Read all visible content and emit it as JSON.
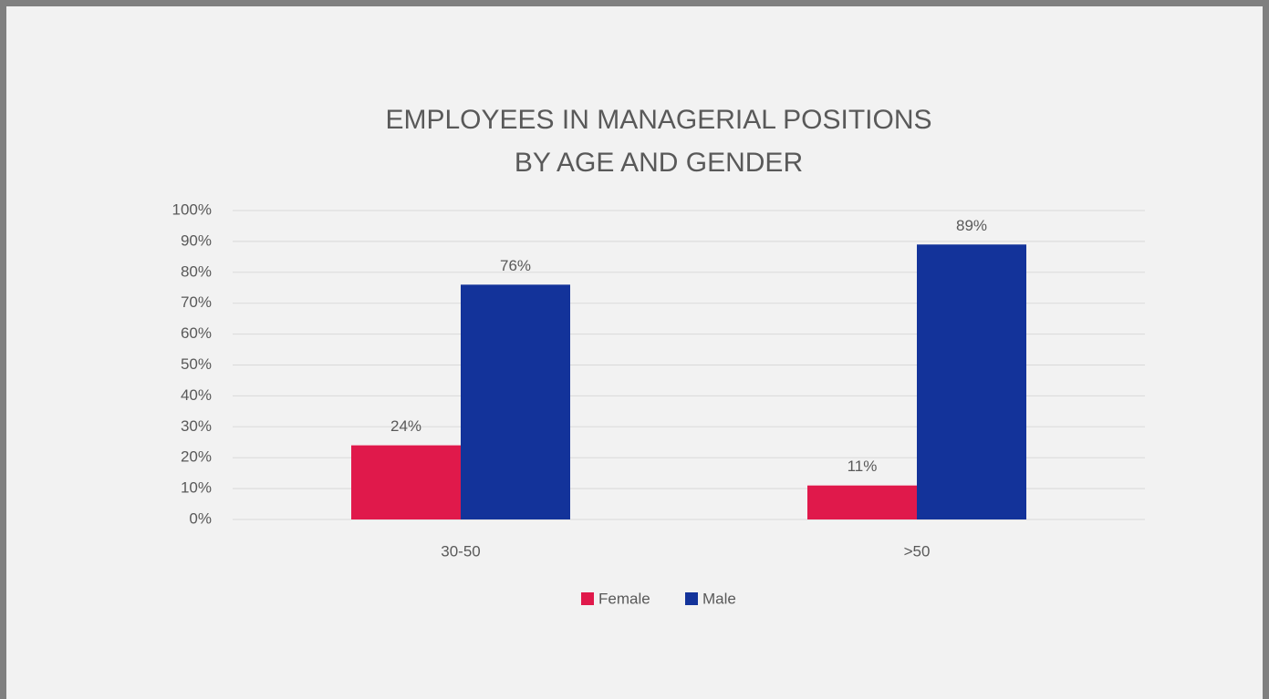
{
  "chart_data": {
    "type": "bar",
    "title": [
      "EMPLOYEES IN MANAGERIAL POSITIONS",
      "BY AGE AND GENDER"
    ],
    "categories": [
      "30-50",
      ">50"
    ],
    "series": [
      {
        "name": "Female",
        "color": "#e0194b",
        "values": [
          24,
          11
        ],
        "value_labels": [
          "24%",
          "11%"
        ]
      },
      {
        "name": "Male",
        "color": "#13339a",
        "values": [
          76,
          89
        ],
        "value_labels": [
          "76%",
          "89%"
        ]
      }
    ],
    "ylim": [
      0,
      100
    ],
    "yticks": [
      {
        "value": 0,
        "label": "0%"
      },
      {
        "value": 10,
        "label": "10%"
      },
      {
        "value": 20,
        "label": "20%"
      },
      {
        "value": 30,
        "label": "30%"
      },
      {
        "value": 40,
        "label": "40%"
      },
      {
        "value": 50,
        "label": "50%"
      },
      {
        "value": 60,
        "label": "60%"
      },
      {
        "value": 70,
        "label": "70%"
      },
      {
        "value": 80,
        "label": "80%"
      },
      {
        "value": 90,
        "label": "90%"
      },
      {
        "value": 100,
        "label": "100%"
      }
    ],
    "grid": true,
    "legend": "bottom"
  }
}
